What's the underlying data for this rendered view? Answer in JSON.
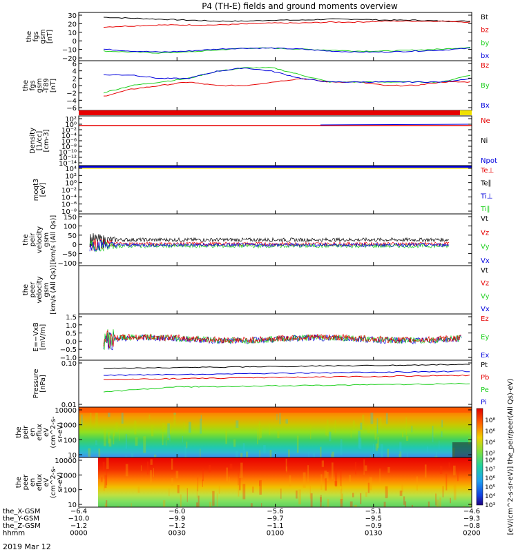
{
  "title": "P4 (TH-E) fields and ground moments overview",
  "date_label": "2019 Mar 12",
  "colors": {
    "black": "#000000",
    "red": "#e60000",
    "green": "#1ecf1e",
    "blue": "#0000dd",
    "yellow": "#f0e000"
  },
  "chart_data": [
    {
      "type": "line",
      "panel": "fgs",
      "ylabel": [
        "the",
        "fgs",
        "gsm",
        "[nT]"
      ],
      "ylim": [
        -20,
        30
      ],
      "yticks": [
        "30",
        "20",
        "10",
        "0",
        "−10",
        "−20"
      ],
      "series": [
        {
          "name": "Bt",
          "values": [
            25,
            24,
            23,
            22,
            21,
            21,
            22,
            22,
            23,
            23,
            22,
            22,
            21,
            21
          ]
        },
        {
          "name": "bz",
          "values": [
            15,
            16,
            17,
            17,
            17,
            18,
            19,
            19,
            20,
            20,
            21,
            21,
            21,
            20
          ]
        },
        {
          "name": "by",
          "values": [
            -10,
            -11,
            -12,
            -11,
            -9,
            -7,
            -7,
            -8,
            -9,
            -10,
            -10,
            -9,
            -8,
            -6
          ]
        },
        {
          "name": "bx",
          "values": [
            -8,
            -10,
            -11,
            -10,
            -8,
            -7,
            -7,
            -8,
            -10,
            -11,
            -11,
            -10,
            -9,
            -7
          ]
        }
      ]
    },
    {
      "type": "line",
      "panel": "fgs_dsub",
      "ylabel": [
        "the",
        "fgs",
        "gsm",
        "-T89",
        "[nT]"
      ],
      "ylim": [
        -7,
        7
      ],
      "yticks": [
        "6",
        "4",
        "2",
        "0",
        "−2",
        "−4",
        "−6"
      ],
      "series": [
        {
          "name": "Bz",
          "values": [
            -3,
            -1,
            0,
            1,
            0,
            0,
            1,
            2,
            1,
            1,
            0,
            0,
            1,
            1
          ]
        },
        {
          "name": "By",
          "values": [
            -2,
            0,
            1,
            2,
            4,
            5,
            5,
            3,
            1,
            1,
            1,
            1,
            1,
            3
          ]
        },
        {
          "name": "Bx",
          "values": [
            3,
            3,
            2,
            2,
            4,
            5,
            4,
            2,
            1,
            1,
            1,
            1,
            1,
            2
          ]
        }
      ]
    },
    {
      "type": "line",
      "panel": "density",
      "ylabel": [
        "Density",
        "[1/cc]",
        "[cm-3]"
      ],
      "yticks": [
        "10²",
        "10⁰",
        "10⁻²",
        "10⁻⁴",
        "10⁻⁶",
        "10⁻⁸",
        "10⁻¹⁰",
        "10⁻¹²",
        "10⁻¹⁴"
      ],
      "series": [
        {
          "name": "Ne"
        },
        {
          "name": "Ni"
        },
        {
          "name": "Npot"
        }
      ]
    },
    {
      "type": "line",
      "panel": "temperature",
      "ylabel": [
        "moqt3",
        "[eV]"
      ],
      "yticks": [
        "10⁴",
        "10²",
        "10⁰",
        "10⁻²",
        "10⁻⁴",
        "10⁻⁶",
        "10⁻⁸"
      ],
      "series": [
        {
          "name": "Te⊥"
        },
        {
          "name": "Te∥"
        },
        {
          "name": "Ti⊥"
        },
        {
          "name": "Ti∥"
        }
      ]
    },
    {
      "type": "line",
      "panel": "velocity",
      "ylabel": [
        "the",
        "peir",
        "velocity",
        "gsm",
        "[km/s (All Qs)]"
      ],
      "ylim": [
        -100,
        150
      ],
      "yticks": [
        "150",
        "100",
        "50",
        "0",
        "−50",
        "−100"
      ],
      "series": [
        {
          "name": "Vt"
        },
        {
          "name": "Vz"
        },
        {
          "name": "Vy"
        },
        {
          "name": "Vx"
        }
      ]
    },
    {
      "type": "line",
      "panel": "velocity_peer",
      "ylabel": [
        "the",
        "peer",
        "velocity",
        "gsm",
        "[km/s (All Qs)]"
      ],
      "series": [
        {
          "name": "Vt"
        },
        {
          "name": "Vz"
        },
        {
          "name": "Vy"
        },
        {
          "name": "Vx"
        }
      ]
    },
    {
      "type": "line",
      "panel": "efield",
      "ylabel": [
        "E=−VxB",
        "[mV/m]"
      ],
      "ylim": [
        -1,
        1.5
      ],
      "yticks": [
        "1.5",
        "1.0",
        "0.5",
        "0.0",
        "−0.5",
        "−1.0"
      ],
      "series": [
        {
          "name": "Ez"
        },
        {
          "name": "Ey"
        },
        {
          "name": "Ex"
        }
      ]
    },
    {
      "type": "line",
      "panel": "pressure",
      "ylabel": [
        "Pressure",
        "[nPa]"
      ],
      "yticks": [
        "0.10",
        "0.01"
      ],
      "series": [
        {
          "name": "Pt"
        },
        {
          "name": "Pb"
        },
        {
          "name": "Pe"
        },
        {
          "name": "Pi"
        }
      ]
    },
    {
      "type": "heatmap",
      "panel": "peir_eflux",
      "ylabel": [
        "the",
        "peir",
        "en",
        "eflux",
        "eV",
        "(cm^2-s-",
        "sr-eV)"
      ],
      "yticks": [
        "10000",
        "1000",
        "100",
        "10"
      ]
    },
    {
      "type": "heatmap",
      "panel": "peer_eflux",
      "ylabel": [
        "the",
        "peer",
        "en",
        "eflux",
        "eV",
        "(cm^2-s-",
        "sr-eV)"
      ],
      "yticks": [
        "10000",
        "1000",
        "100",
        "10"
      ]
    }
  ],
  "colorbar": {
    "upper_ticks": [
      "10⁸",
      "10⁶",
      "10⁴",
      "10²"
    ],
    "lower_ticks": [
      "10⁸",
      "10⁷",
      "10⁶",
      "10⁵",
      "10⁴",
      "10³"
    ],
    "label": "[eV/(cm^2-s-sr-eV)] the_peir/peer(All Qs)-eV)"
  },
  "xaxis": {
    "rows": [
      {
        "label": "the_X-GSM",
        "values": [
          "−6.4",
          "−6.0",
          "−5.6",
          "−5.1",
          "−4.6"
        ]
      },
      {
        "label": "the_Y-GSM",
        "values": [
          "−10.0",
          "−9.9",
          "−9.7",
          "−9.5",
          "−9.3"
        ]
      },
      {
        "label": "the_Z-GSM",
        "values": [
          "−1.2",
          "−1.2",
          "−1.1",
          "−0.9",
          "−0.8"
        ]
      },
      {
        "label": "hhmm",
        "values": [
          "0000",
          "0030",
          "0100",
          "0130",
          "0200"
        ]
      }
    ]
  }
}
